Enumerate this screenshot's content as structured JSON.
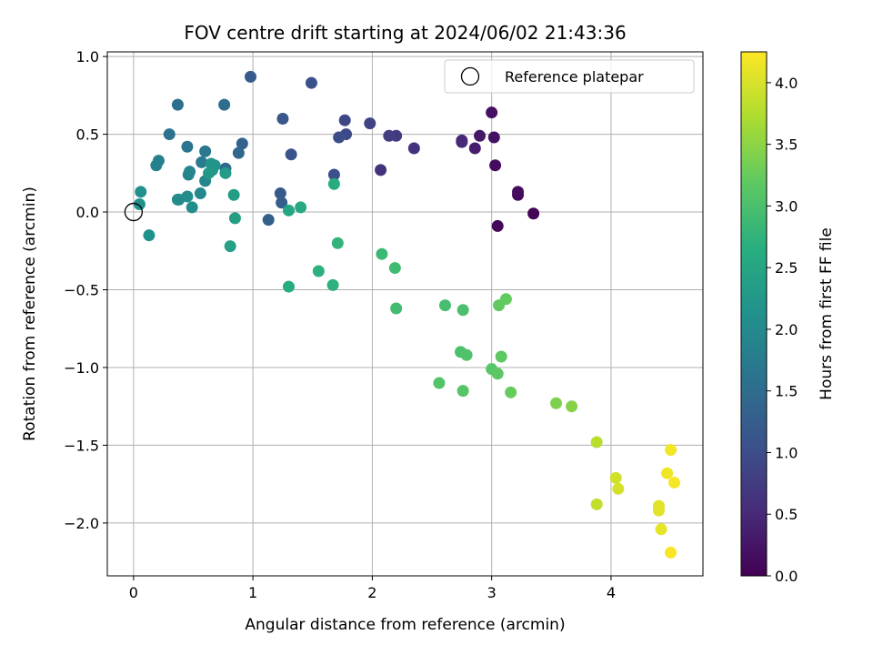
{
  "chart_data": {
    "type": "scatter",
    "title": "FOV centre drift starting at 2024/06/02 21:43:36",
    "xlabel": "Angular distance from reference (arcmin)",
    "ylabel": "Rotation from reference (arcmin)",
    "xlim": [
      -0.22,
      4.77
    ],
    "ylim": [
      -2.34,
      1.03
    ],
    "x_ticks": [
      0,
      1,
      2,
      3,
      4
    ],
    "x_tick_labels": [
      "0",
      "1",
      "2",
      "3",
      "4"
    ],
    "y_ticks": [
      1.0,
      0.5,
      0.0,
      -0.5,
      -1.0,
      -1.5,
      -2.0
    ],
    "y_tick_labels": [
      "1.0",
      "0.5",
      "0.0",
      "−0.5",
      "−1.0",
      "−1.5",
      "−2.0"
    ],
    "grid": true,
    "legend": {
      "placement": "top-right",
      "entries": [
        "Reference platepar"
      ]
    },
    "reference_point": {
      "x": 0,
      "y": 0
    },
    "colorbar": {
      "label": "Hours from first FF file",
      "range": [
        0,
        4.25
      ],
      "colormap": "viridis",
      "ticks": [
        0.0,
        0.5,
        1.0,
        1.5,
        2.0,
        2.5,
        3.0,
        3.5,
        4.0
      ],
      "tick_labels": [
        "0.0",
        "0.5",
        "1.0",
        "1.5",
        "2.0",
        "2.5",
        "3.0",
        "3.5",
        "4.0"
      ]
    },
    "points": [
      {
        "x": 3.35,
        "y": -0.01,
        "c": 0.05
      },
      {
        "x": 3.05,
        "y": -0.09,
        "c": 0.08
      },
      {
        "x": 3.22,
        "y": 0.11,
        "c": 0.1
      },
      {
        "x": 3.22,
        "y": 0.13,
        "c": 0.12
      },
      {
        "x": 3.03,
        "y": 0.3,
        "c": 0.15
      },
      {
        "x": 3.0,
        "y": 0.64,
        "c": 0.18
      },
      {
        "x": 3.02,
        "y": 0.48,
        "c": 0.22
      },
      {
        "x": 2.9,
        "y": 0.49,
        "c": 0.28
      },
      {
        "x": 2.86,
        "y": 0.41,
        "c": 0.35
      },
      {
        "x": 2.75,
        "y": 0.45,
        "c": 0.45
      },
      {
        "x": 2.75,
        "y": 0.46,
        "c": 0.5
      },
      {
        "x": 2.35,
        "y": 0.41,
        "c": 0.65
      },
      {
        "x": 2.2,
        "y": 0.49,
        "c": 0.72
      },
      {
        "x": 2.14,
        "y": 0.49,
        "c": 0.78
      },
      {
        "x": 2.07,
        "y": 0.27,
        "c": 0.62
      },
      {
        "x": 1.98,
        "y": 0.57,
        "c": 0.85
      },
      {
        "x": 1.77,
        "y": 0.59,
        "c": 0.9
      },
      {
        "x": 1.78,
        "y": 0.5,
        "c": 0.95
      },
      {
        "x": 1.72,
        "y": 0.48,
        "c": 1.0
      },
      {
        "x": 1.68,
        "y": 0.24,
        "c": 1.02
      },
      {
        "x": 1.49,
        "y": 0.83,
        "c": 1.05
      },
      {
        "x": 1.32,
        "y": 0.37,
        "c": 1.1
      },
      {
        "x": 1.25,
        "y": 0.6,
        "c": 1.15
      },
      {
        "x": 1.23,
        "y": 0.12,
        "c": 1.2
      },
      {
        "x": 1.24,
        "y": 0.06,
        "c": 1.25
      },
      {
        "x": 1.13,
        "y": -0.05,
        "c": 1.3
      },
      {
        "x": 0.98,
        "y": 0.87,
        "c": 1.2
      },
      {
        "x": 0.91,
        "y": 0.44,
        "c": 1.35
      },
      {
        "x": 0.88,
        "y": 0.38,
        "c": 1.4
      },
      {
        "x": 0.77,
        "y": 0.28,
        "c": 1.45
      },
      {
        "x": 0.76,
        "y": 0.69,
        "c": 1.5
      },
      {
        "x": 0.37,
        "y": 0.69,
        "c": 1.55
      },
      {
        "x": 0.3,
        "y": 0.5,
        "c": 1.6
      },
      {
        "x": 0.45,
        "y": 0.42,
        "c": 1.65
      },
      {
        "x": 0.6,
        "y": 0.39,
        "c": 1.7
      },
      {
        "x": 0.57,
        "y": 0.32,
        "c": 1.75
      },
      {
        "x": 0.21,
        "y": 0.33,
        "c": 1.8
      },
      {
        "x": 0.19,
        "y": 0.3,
        "c": 1.85
      },
      {
        "x": 0.47,
        "y": 0.26,
        "c": 1.9
      },
      {
        "x": 0.46,
        "y": 0.24,
        "c": 1.92
      },
      {
        "x": 0.6,
        "y": 0.2,
        "c": 1.95
      },
      {
        "x": 0.56,
        "y": 0.12,
        "c": 1.98
      },
      {
        "x": 0.37,
        "y": 0.08,
        "c": 2.0
      },
      {
        "x": 0.38,
        "y": 0.08,
        "c": 2.02
      },
      {
        "x": 0.45,
        "y": 0.1,
        "c": 2.05
      },
      {
        "x": 0.49,
        "y": 0.03,
        "c": 2.08
      },
      {
        "x": 0.06,
        "y": 0.13,
        "c": 2.1
      },
      {
        "x": 0.05,
        "y": 0.05,
        "c": 2.12
      },
      {
        "x": 0.13,
        "y": -0.15,
        "c": 2.15
      },
      {
        "x": 0.65,
        "y": 0.31,
        "c": 2.18
      },
      {
        "x": 0.68,
        "y": 0.3,
        "c": 2.2
      },
      {
        "x": 0.66,
        "y": 0.27,
        "c": 2.22
      },
      {
        "x": 0.63,
        "y": 0.25,
        "c": 2.25
      },
      {
        "x": 0.77,
        "y": 0.25,
        "c": 2.3
      },
      {
        "x": 0.84,
        "y": 0.11,
        "c": 2.35
      },
      {
        "x": 0.85,
        "y": -0.04,
        "c": 2.38
      },
      {
        "x": 0.81,
        "y": -0.22,
        "c": 2.4
      },
      {
        "x": 1.3,
        "y": 0.01,
        "c": 2.5
      },
      {
        "x": 1.4,
        "y": 0.03,
        "c": 2.55
      },
      {
        "x": 1.68,
        "y": 0.18,
        "c": 2.6
      },
      {
        "x": 1.3,
        "y": -0.48,
        "c": 2.62
      },
      {
        "x": 1.55,
        "y": -0.38,
        "c": 2.7
      },
      {
        "x": 1.67,
        "y": -0.47,
        "c": 2.72
      },
      {
        "x": 1.71,
        "y": -0.2,
        "c": 2.75
      },
      {
        "x": 2.08,
        "y": -0.27,
        "c": 2.85
      },
      {
        "x": 2.19,
        "y": -0.36,
        "c": 2.9
      },
      {
        "x": 2.2,
        "y": -0.62,
        "c": 2.92
      },
      {
        "x": 2.61,
        "y": -0.6,
        "c": 2.95
      },
      {
        "x": 2.76,
        "y": -0.63,
        "c": 3.0
      },
      {
        "x": 2.74,
        "y": -0.9,
        "c": 3.02
      },
      {
        "x": 2.79,
        "y": -0.92,
        "c": 3.05
      },
      {
        "x": 2.56,
        "y": -1.1,
        "c": 3.08
      },
      {
        "x": 2.76,
        "y": -1.15,
        "c": 3.1
      },
      {
        "x": 3.0,
        "y": -1.01,
        "c": 3.12
      },
      {
        "x": 3.05,
        "y": -1.04,
        "c": 3.15
      },
      {
        "x": 3.08,
        "y": -0.93,
        "c": 3.18
      },
      {
        "x": 3.06,
        "y": -0.6,
        "c": 3.2
      },
      {
        "x": 3.12,
        "y": -0.56,
        "c": 3.22
      },
      {
        "x": 3.16,
        "y": -1.16,
        "c": 3.25
      },
      {
        "x": 3.54,
        "y": -1.23,
        "c": 3.4
      },
      {
        "x": 3.67,
        "y": -1.25,
        "c": 3.45
      },
      {
        "x": 3.88,
        "y": -1.48,
        "c": 3.8
      },
      {
        "x": 3.88,
        "y": -1.88,
        "c": 3.85
      },
      {
        "x": 4.04,
        "y": -1.71,
        "c": 3.95
      },
      {
        "x": 4.06,
        "y": -1.78,
        "c": 3.98
      },
      {
        "x": 4.4,
        "y": -1.89,
        "c": 4.05
      },
      {
        "x": 4.4,
        "y": -1.92,
        "c": 4.08
      },
      {
        "x": 4.42,
        "y": -2.04,
        "c": 4.1
      },
      {
        "x": 4.47,
        "y": -1.68,
        "c": 4.15
      },
      {
        "x": 4.5,
        "y": -1.53,
        "c": 4.18
      },
      {
        "x": 4.53,
        "y": -1.74,
        "c": 4.2
      },
      {
        "x": 4.5,
        "y": -2.19,
        "c": 4.22
      }
    ]
  }
}
